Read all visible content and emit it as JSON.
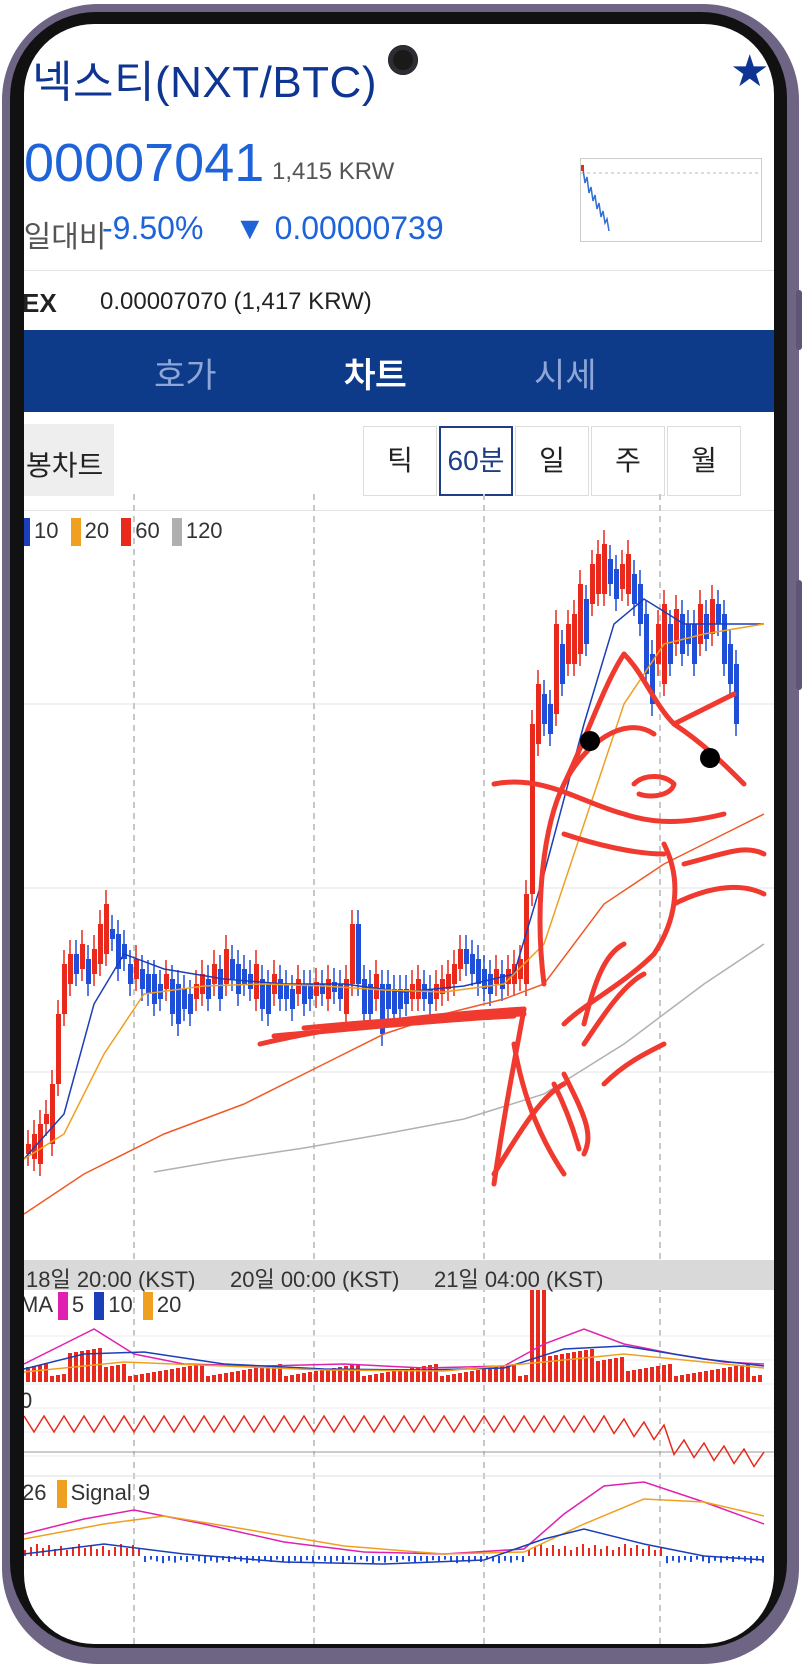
{
  "header": {
    "title": "넥스티(NXT/BTC)",
    "price": "00007041",
    "price_krw": "1,415 KRW",
    "change_label": "전일대비",
    "change_pct": "-9.50%",
    "change_amount": "▼ 0.00000739"
  },
  "exchange": {
    "label": "EX",
    "value": "0.00007070 (1,417 KRW)"
  },
  "tabs": [
    {
      "label": "호가"
    },
    {
      "label": "차트",
      "active": true
    },
    {
      "label": "시세"
    }
  ],
  "chart_toolbar": {
    "mode_label": "봉차트",
    "periods": [
      {
        "label": "틱"
      },
      {
        "label": "60분",
        "active": true
      },
      {
        "label": "일"
      },
      {
        "label": "주"
      },
      {
        "label": "월"
      }
    ]
  },
  "legends": {
    "main": [
      "10",
      "20",
      "60",
      "120"
    ],
    "volume": {
      "prefix": "MA",
      "items": [
        "5",
        "10",
        "20"
      ]
    },
    "macd": {
      "prefix": "26",
      "signal": "Signal 9"
    },
    "osc_label": "0"
  },
  "x_axis": [
    "18일 20:00 (KST)",
    "20일 00:00 (KST)",
    "21일 04:00 (KST)"
  ],
  "colors": {
    "brand": "#0e3a8a",
    "up": "#e8291c",
    "down": "#1f4ed8",
    "ma10": "#1a3fb8",
    "ma20": "#f0a020",
    "ma60": "#f05a28",
    "ma120": "#b0b0b0",
    "drawing": "#f03a30"
  },
  "icons": {
    "favorite": "star-icon",
    "change_direction": "triangle-down-icon"
  }
}
